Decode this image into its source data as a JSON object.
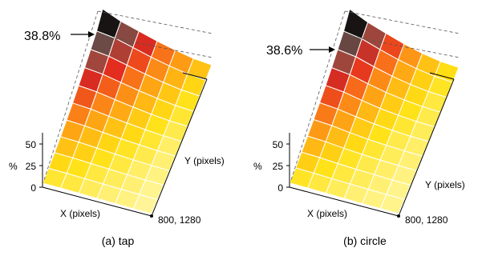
{
  "chart_data": [
    {
      "type": "heatmap",
      "caption": "(a) tap",
      "peak_label": "38.8%",
      "z_axis_label": "%",
      "z_ticks": [
        "50",
        "25",
        "0"
      ],
      "zlim": [
        0,
        50
      ],
      "x_axis_label": "X (pixels)",
      "y_axis_label": "Y (pixels)",
      "corner_label": "800, 1280",
      "grid_cols": 6,
      "grid_rows": 10,
      "values": [
        [
          38.8,
          33.0,
          27.0,
          21.0,
          17.0,
          13.0
        ],
        [
          35.0,
          30.0,
          24.0,
          18.5,
          14.5,
          11.0
        ],
        [
          31.0,
          26.0,
          21.0,
          16.0,
          12.5,
          9.5
        ],
        [
          27.0,
          22.5,
          18.0,
          14.0,
          11.0,
          8.5
        ],
        [
          23.0,
          19.0,
          15.5,
          12.0,
          9.5,
          7.5
        ],
        [
          19.5,
          16.0,
          13.0,
          10.5,
          8.5,
          6.5
        ],
        [
          16.0,
          13.5,
          11.0,
          9.0,
          7.5,
          6.0
        ],
        [
          13.0,
          11.5,
          9.5,
          8.0,
          6.5,
          5.5
        ],
        [
          10.5,
          9.5,
          8.0,
          7.0,
          6.0,
          5.0
        ],
        [
          8.5,
          8.0,
          7.0,
          6.0,
          5.5,
          4.5
        ]
      ]
    },
    {
      "type": "heatmap",
      "caption": "(b) circle",
      "peak_label": "38.6%",
      "z_axis_label": "%",
      "z_ticks": [
        "50",
        "25",
        "0"
      ],
      "zlim": [
        0,
        50
      ],
      "x_axis_label": "X (pixels)",
      "y_axis_label": "Y (pixels)",
      "corner_label": "800, 1280",
      "grid_cols": 6,
      "grid_rows": 10,
      "values": [
        [
          38.6,
          31.0,
          24.0,
          17.5,
          13.0,
          10.0
        ],
        [
          35.0,
          28.0,
          21.0,
          15.5,
          11.5,
          9.0
        ],
        [
          31.0,
          25.0,
          18.5,
          13.5,
          10.5,
          8.0
        ],
        [
          27.0,
          21.5,
          16.0,
          12.0,
          9.5,
          7.5
        ],
        [
          23.5,
          18.5,
          14.0,
          10.5,
          8.5,
          7.0
        ],
        [
          20.0,
          16.0,
          12.0,
          9.5,
          7.5,
          6.5
        ],
        [
          17.0,
          13.5,
          10.5,
          8.5,
          7.0,
          6.0
        ],
        [
          14.0,
          11.5,
          9.0,
          7.5,
          6.5,
          5.5
        ],
        [
          11.5,
          9.5,
          8.0,
          7.0,
          6.0,
          5.0
        ],
        [
          9.0,
          8.0,
          7.0,
          6.0,
          5.5,
          5.0
        ]
      ]
    }
  ]
}
